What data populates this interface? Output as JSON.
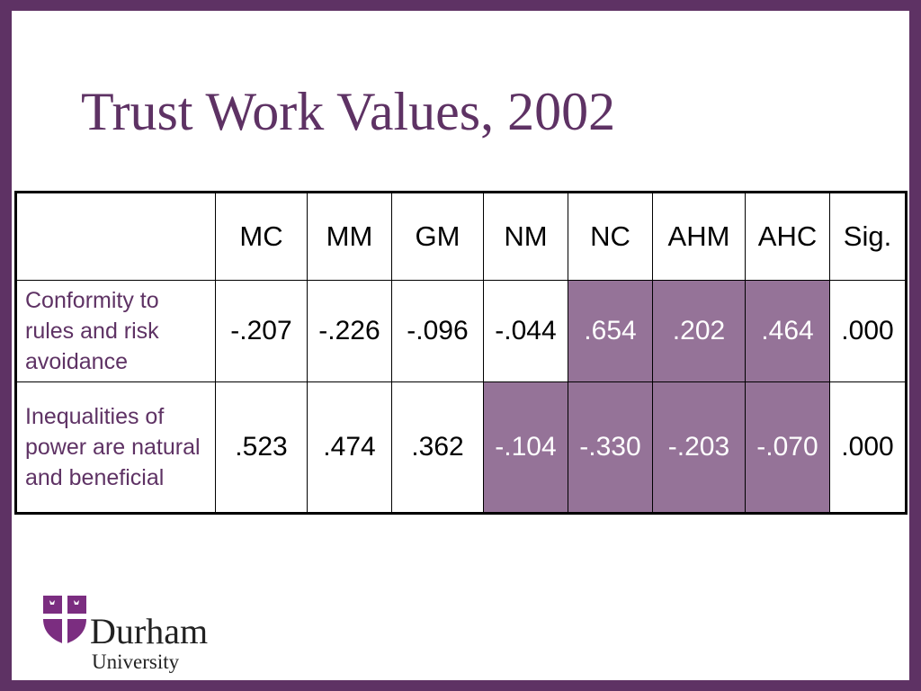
{
  "slide": {
    "title": "Trust Work Values, 2002"
  },
  "table": {
    "headers": [
      "",
      "MC",
      "MM",
      "GM",
      "NM",
      "NC",
      "AHM",
      "AHC",
      "Sig."
    ],
    "rows": [
      {
        "label": "Conformity to rules and risk avoidance",
        "values": [
          "-.207",
          "-.226",
          "-.096",
          "-.044",
          ".654",
          ".202",
          ".464",
          ".000"
        ],
        "highlighted": [
          false,
          false,
          false,
          false,
          true,
          true,
          true,
          false
        ]
      },
      {
        "label": "Inequalities of power are natural and beneficial",
        "values": [
          ".523",
          ".474",
          ".362",
          "-.104",
          "-.330",
          "-.203",
          "-.070",
          ".000"
        ],
        "highlighted": [
          false,
          false,
          false,
          true,
          true,
          true,
          true,
          false
        ]
      }
    ]
  },
  "logo": {
    "name": "Durham",
    "subtitle": "University"
  },
  "colors": {
    "frame": "#5e3264",
    "title": "#5e3264",
    "highlight_fill": "#957398",
    "highlight_text": "#ffffff"
  }
}
